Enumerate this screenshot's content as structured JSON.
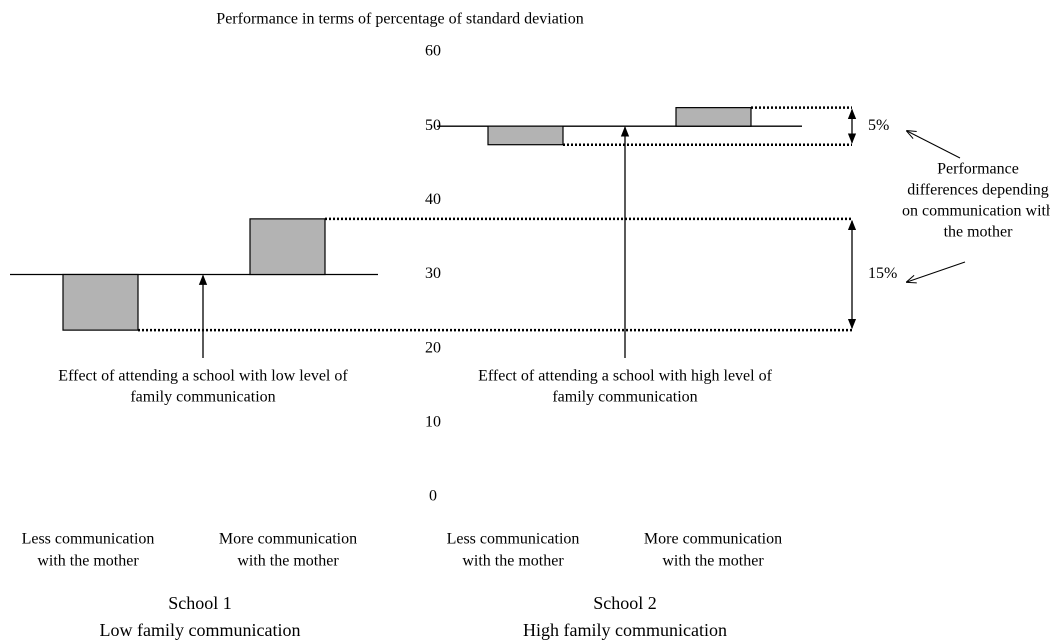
{
  "chart_data": {
    "type": "bar",
    "title": "Performance in terms of percentage of standard deviation",
    "ylim": [
      0,
      60
    ],
    "yticks": [
      0,
      10,
      20,
      30,
      40,
      50,
      60
    ],
    "bar_color": "#b3b3b3",
    "groups": [
      {
        "name": "School 1",
        "subtitle": "Low family communication",
        "baseline": 30,
        "categories": [
          [
            "Less communication",
            "with the mother"
          ],
          [
            "More communication",
            "with the mother"
          ]
        ],
        "values": [
          22.5,
          37.5
        ],
        "annotation": [
          "Effect of attending a school with low level of",
          "family communication"
        ],
        "difference": 15,
        "difference_label": "15%"
      },
      {
        "name": "School 2",
        "subtitle": "High family communication",
        "baseline": 50,
        "categories": [
          [
            "Less communication",
            "with the mother"
          ],
          [
            "More communication",
            "with the mother"
          ]
        ],
        "values": [
          47.5,
          52.5
        ],
        "annotation": [
          "Effect of attending a school with high level of",
          "family communication"
        ],
        "difference": 5,
        "difference_label": "5%"
      }
    ],
    "callout": [
      "Performance",
      "differences depending",
      "on communication with",
      "the mother"
    ]
  }
}
